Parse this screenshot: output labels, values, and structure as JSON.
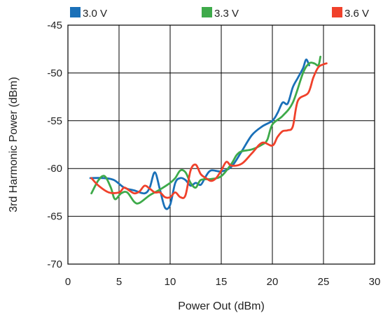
{
  "chart_data": {
    "type": "line",
    "title": "",
    "xlabel": "Power Out (dBm)",
    "ylabel": "3rd Harmonic Power (dBm)",
    "xlim": [
      0,
      30
    ],
    "ylim": [
      -70,
      -45
    ],
    "xticks": [
      0,
      5,
      10,
      15,
      20,
      25,
      30
    ],
    "yticks": [
      -45,
      -50,
      -55,
      -60,
      -65,
      -70
    ],
    "xtick_labels": [
      "0",
      "5",
      "10",
      "15",
      "20",
      "25",
      "30"
    ],
    "ytick_labels": [
      "-45",
      "-50",
      "-55",
      "-60",
      "-65",
      "-70"
    ],
    "grid": true,
    "legend_position": "top",
    "series": [
      {
        "name": "3.0 V",
        "color": "#1a70b8",
        "x": [
          2.2,
          3.5,
          4.5,
          5.5,
          6.5,
          7.5,
          8.0,
          8.5,
          9.0,
          9.5,
          10.0,
          10.5,
          11.0,
          11.5,
          12.0,
          12.5,
          13.0,
          13.5,
          14.0,
          15.0,
          16.0,
          17.0,
          18.0,
          19.0,
          20.0,
          20.5,
          21.0,
          21.5,
          22.0,
          22.5,
          23.0,
          23.3,
          23.6
        ],
        "y": [
          -61.0,
          -61.0,
          -61.2,
          -62.0,
          -62.3,
          -62.6,
          -62.0,
          -60.4,
          -62.2,
          -64.1,
          -63.8,
          -61.5,
          -61.0,
          -61.2,
          -61.8,
          -61.5,
          -61.7,
          -60.8,
          -60.2,
          -60.3,
          -59.8,
          -58.2,
          -56.5,
          -55.6,
          -55.0,
          -54.2,
          -53.1,
          -53.2,
          -51.5,
          -50.5,
          -49.5,
          -48.6,
          -49.2
        ]
      },
      {
        "name": "3.3 V",
        "color": "#3eaa4a",
        "x": [
          2.3,
          3.0,
          3.6,
          4.2,
          4.6,
          5.2,
          5.8,
          6.5,
          7.0,
          8.0,
          9.0,
          10.0,
          10.5,
          11.0,
          11.5,
          12.0,
          12.5,
          13.0,
          14.0,
          15.0,
          16.0,
          16.5,
          17.0,
          18.0,
          19.0,
          19.5,
          20.0,
          21.0,
          22.0,
          23.0,
          23.6,
          24.1,
          24.5,
          24.7
        ],
        "y": [
          -62.6,
          -61.2,
          -60.8,
          -62.0,
          -63.2,
          -62.6,
          -62.5,
          -63.5,
          -63.6,
          -62.8,
          -62.2,
          -61.5,
          -61.0,
          -60.2,
          -60.4,
          -61.5,
          -62.0,
          -61.2,
          -61.1,
          -60.8,
          -59.5,
          -58.6,
          -58.2,
          -58.0,
          -57.5,
          -57.0,
          -55.4,
          -54.5,
          -53.1,
          -50.0,
          -49.0,
          -49.0,
          -49.2,
          -48.3
        ]
      },
      {
        "name": "3.6 V",
        "color": "#f0412b",
        "x": [
          2.3,
          3.0,
          4.0,
          5.0,
          5.5,
          6.0,
          6.5,
          7.0,
          7.5,
          8.0,
          8.5,
          9.0,
          9.5,
          10.0,
          10.5,
          11.0,
          11.5,
          12.0,
          12.5,
          13.0,
          13.5,
          14.0,
          14.5,
          15.0,
          15.5,
          16.0,
          17.0,
          18.0,
          19.0,
          20.0,
          20.5,
          21.0,
          21.5,
          22.0,
          22.5,
          23.5,
          24.0,
          24.5,
          25.0,
          25.3
        ],
        "y": [
          -61.0,
          -61.8,
          -62.5,
          -62.5,
          -62.0,
          -62.3,
          -62.6,
          -62.4,
          -61.8,
          -62.1,
          -62.5,
          -62.5,
          -63.0,
          -63.0,
          -62.5,
          -63.0,
          -62.8,
          -60.2,
          -59.6,
          -60.6,
          -61.0,
          -61.3,
          -61.0,
          -60.2,
          -59.3,
          -59.7,
          -59.5,
          -58.4,
          -57.3,
          -57.6,
          -56.7,
          -56.1,
          -56.0,
          -55.6,
          -52.9,
          -52.1,
          -50.5,
          -49.4,
          -49.1,
          -49.0
        ]
      }
    ]
  }
}
